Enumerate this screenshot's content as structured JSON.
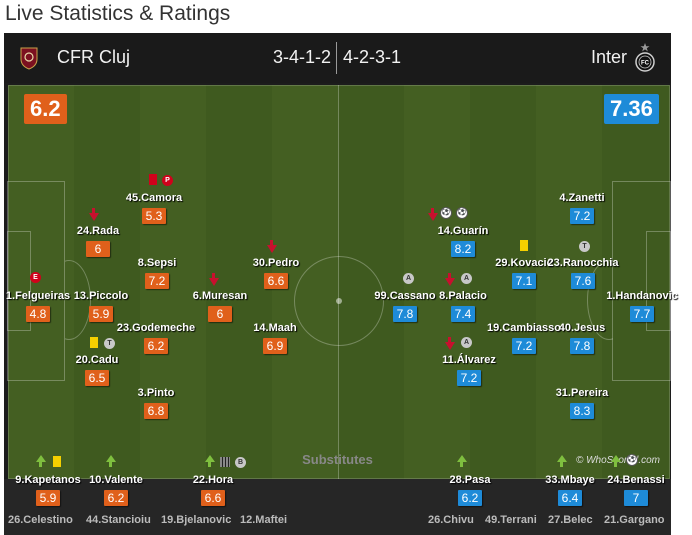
{
  "page_title": "Live Statistics & Ratings",
  "home": {
    "name": "CFR Cluj",
    "formation": "3-4-1-2",
    "rating": "6.2",
    "color": "#e0601b"
  },
  "away": {
    "name": "Inter",
    "formation": "4-2-3-1",
    "rating": "7.36",
    "color": "#1e8bd8"
  },
  "players": [
    {
      "name": "45.Camora",
      "rating": "5.3"
    },
    {
      "name": "24.Rada",
      "rating": "6"
    },
    {
      "name": "8.Sepsi",
      "rating": "7.2"
    },
    {
      "name": "1.Felgueiras",
      "rating": "4.8"
    },
    {
      "name": "13.Piccolo",
      "rating": "5.9"
    },
    {
      "name": "23.Godemeche",
      "rating": "6.2"
    },
    {
      "name": "20.Cadu",
      "rating": "6.5"
    },
    {
      "name": "3.Pinto",
      "rating": "6.8"
    },
    {
      "name": "6.Muresan",
      "rating": "6"
    },
    {
      "name": "30.Pedro",
      "rating": "6.6"
    },
    {
      "name": "14.Maah",
      "rating": "6.9"
    },
    {
      "name": "14.Guarín",
      "rating": "8.2"
    },
    {
      "name": "99.Cassano",
      "rating": "7.8"
    },
    {
      "name": "8.Palacio",
      "rating": "7.4"
    },
    {
      "name": "11.Álvarez",
      "rating": "7.2"
    },
    {
      "name": "29.Kovacic",
      "rating": "7.1"
    },
    {
      "name": "19.Cambiasso",
      "rating": "7.2"
    },
    {
      "name": "4.Zanetti",
      "rating": "7.2"
    },
    {
      "name": "23.Ranocchia",
      "rating": "7.6"
    },
    {
      "name": "40.Jesus",
      "rating": "7.8"
    },
    {
      "name": "31.Pereira",
      "rating": "8.3"
    },
    {
      "name": "1.Handanovic",
      "rating": "7.7"
    }
  ],
  "badges": {
    "e": "E",
    "p": "P",
    "a": "A",
    "t": "T",
    "b": "B"
  },
  "watermark": "© WhoScored.com",
  "subs_title": "Substitutes",
  "subs_used": [
    {
      "name": "9.Kapetanos",
      "rating": "5.9"
    },
    {
      "name": "10.Valente",
      "rating": "6.2"
    },
    {
      "name": "22.Hora",
      "rating": "6.6"
    },
    {
      "name": "28.Pasa",
      "rating": "6.2"
    },
    {
      "name": "33.Mbaye",
      "rating": "6.4"
    },
    {
      "name": "24.Benassi",
      "rating": "7"
    }
  ],
  "subs_unused": [
    "26.Celestino",
    "44.Stancioiu",
    "19.Bjelanovic",
    "12.Maftei",
    "26.Chivu",
    "49.Terrani",
    "27.Belec",
    "21.Gargano"
  ]
}
